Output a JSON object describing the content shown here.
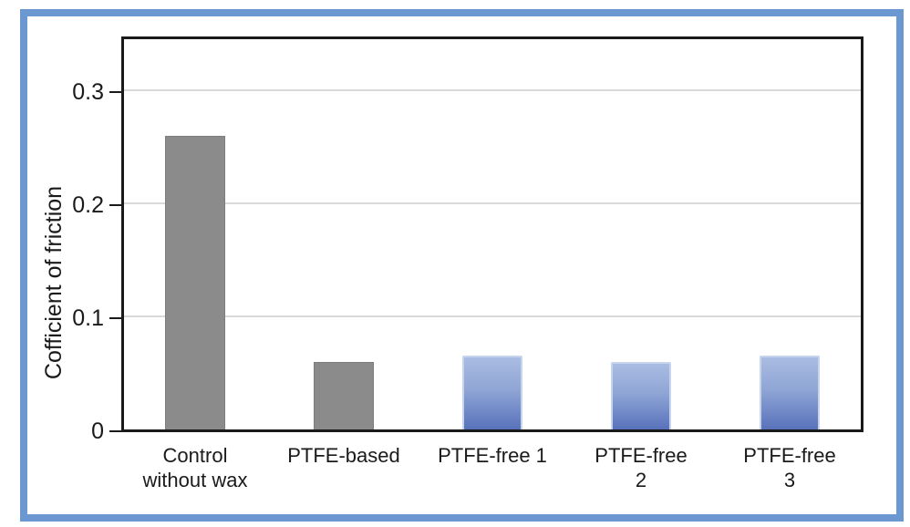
{
  "chart_data": {
    "type": "bar",
    "title": "",
    "ylabel": "Cofficient of friction",
    "xlabel": "",
    "ylim": [
      0,
      0.35
    ],
    "grid": true,
    "legend": null,
    "yticks": [
      {
        "value": 0,
        "label": "0"
      },
      {
        "value": 0.1,
        "label": "0.1"
      },
      {
        "value": 0.2,
        "label": "0.2"
      },
      {
        "value": 0.3,
        "label": "0.3"
      }
    ],
    "categories": [
      "Control without wax",
      "PTFE-based",
      "PTFE-free 1",
      "PTFE-free 2",
      "PTFE-free 3"
    ],
    "category_label_lines": [
      [
        "Control",
        "without wax"
      ],
      [
        "PTFE-based"
      ],
      [
        "PTFE-free 1"
      ],
      [
        "PTFE-free",
        "2"
      ],
      [
        "PTFE-free",
        "3"
      ]
    ],
    "values": [
      0.26,
      0.06,
      0.065,
      0.06,
      0.065
    ],
    "bar_colors": [
      "gray",
      "gray",
      "blue",
      "blue",
      "blue"
    ]
  },
  "colors": {
    "figure_border": "#6b98d0",
    "axis_frame": "#1a1a1a",
    "gridline": "#d9d9d9",
    "text": "#1a1a1a",
    "gray_bar": "#8b8b8b",
    "gray_bar_border": "#7d7d7d",
    "blue_bar_top": "#a9bce2",
    "blue_bar_mid": "#8fa5d5",
    "blue_bar_bottom": "#5872bb",
    "blue_bar_border": "#c6d4ee"
  }
}
